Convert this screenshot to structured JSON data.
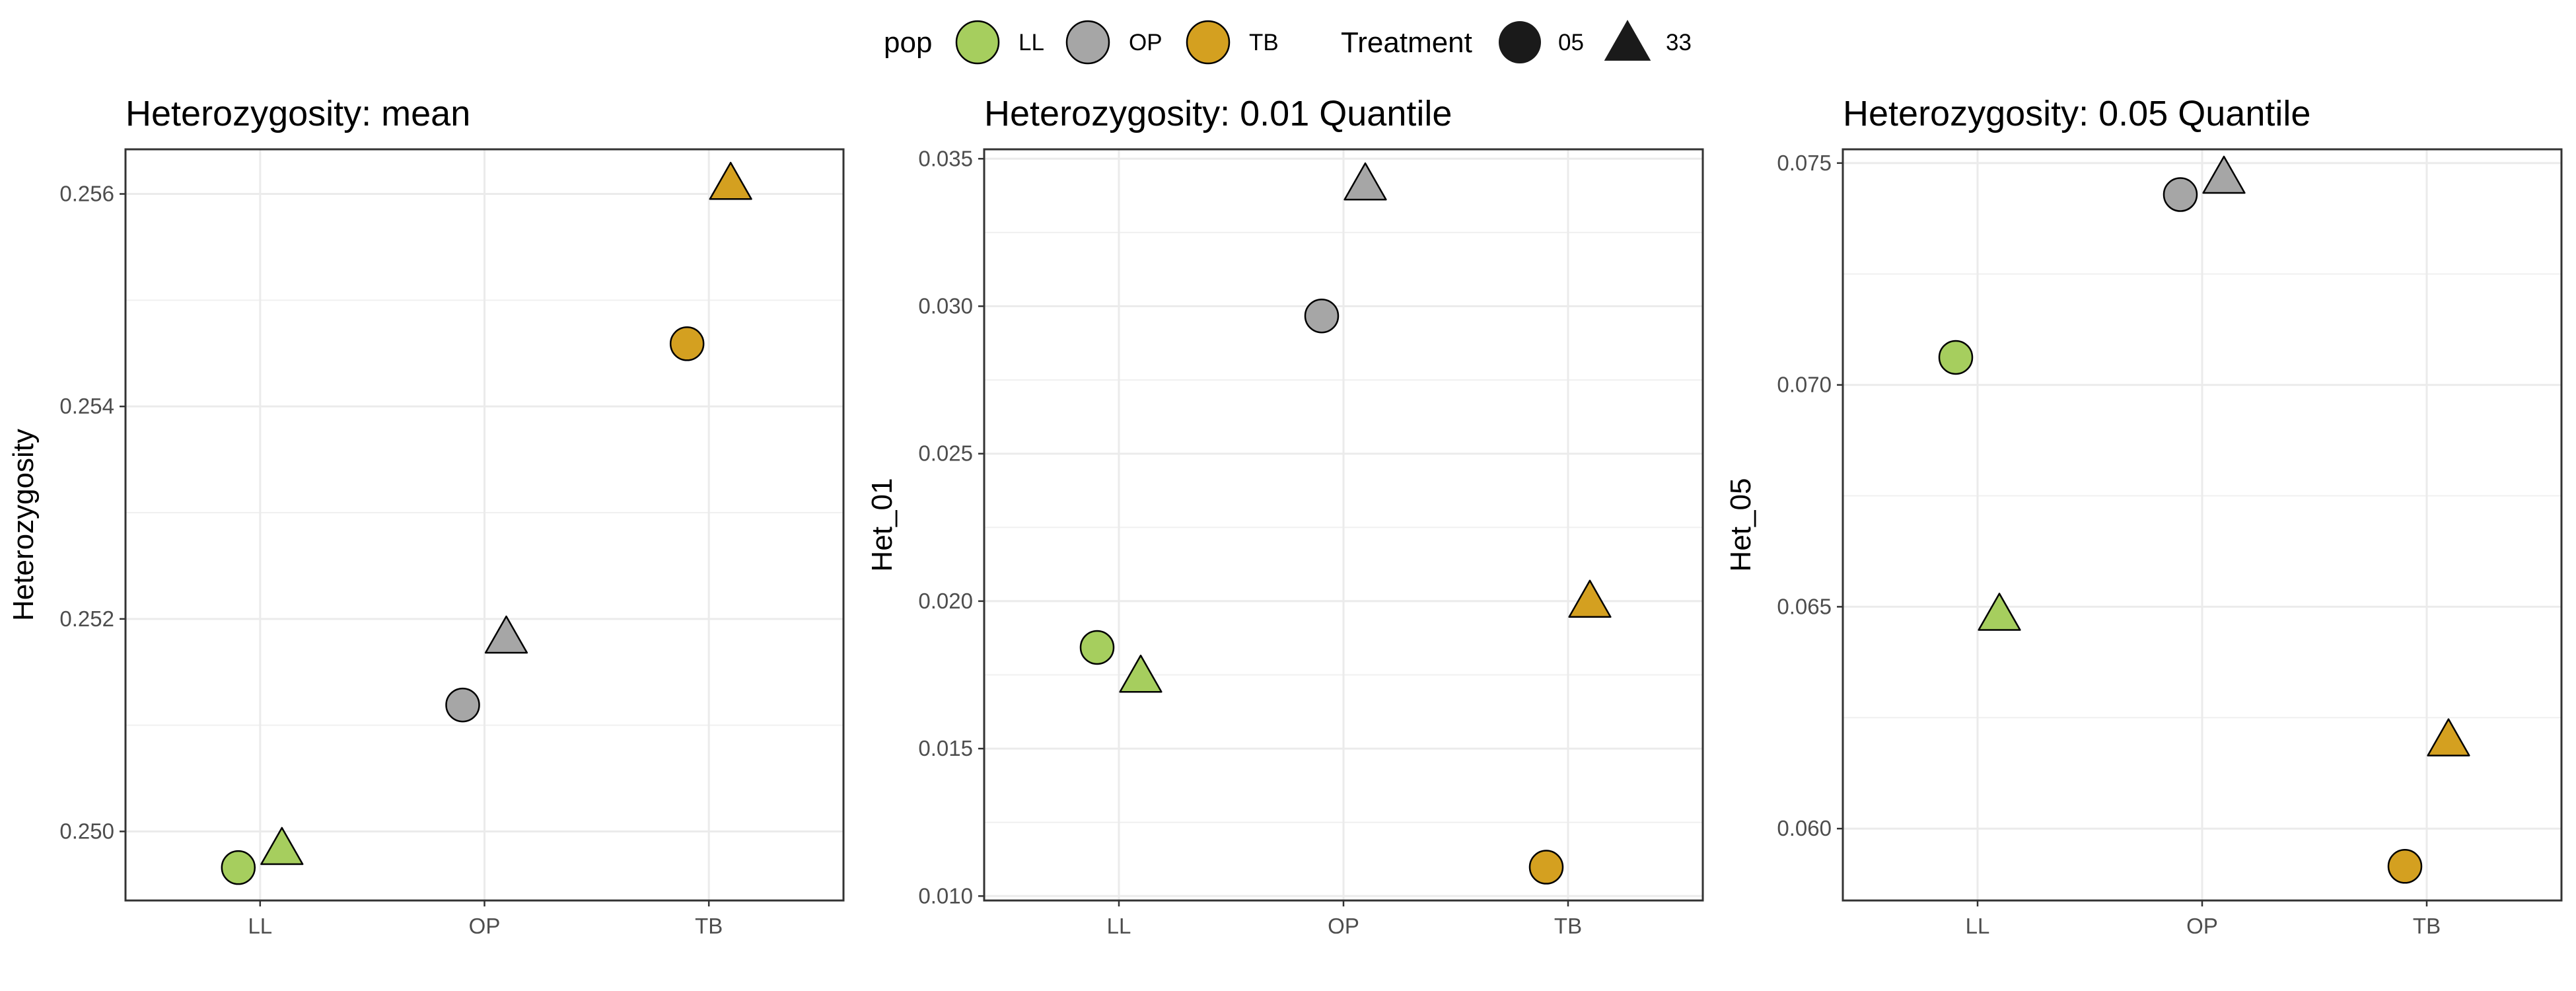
{
  "legend": {
    "pop_title": "pop",
    "treatment_title": "Treatment",
    "pop_items": [
      {
        "label": "LL",
        "color": "#A6CE5E"
      },
      {
        "label": "OP",
        "color": "#A6A6A6"
      },
      {
        "label": "TB",
        "color": "#D4A020"
      }
    ],
    "treatment_items": [
      {
        "label": "05",
        "shape": "circle"
      },
      {
        "label": "33",
        "shape": "triangle"
      }
    ]
  },
  "chart_data": [
    {
      "type": "scatter",
      "title": "Heterozygosity: mean",
      "xlabel": "",
      "ylabel": "Heterozygosity",
      "categories": [
        "LL",
        "OP",
        "TB"
      ],
      "yticks": [
        "0.250",
        "0.252",
        "0.254",
        "0.256"
      ],
      "ylim": [
        0.24935,
        0.25642
      ],
      "grid": true,
      "points": [
        {
          "pop": "LL",
          "treatment": "05",
          "value": 0.24966
        },
        {
          "pop": "LL",
          "treatment": "33",
          "value": 0.24986
        },
        {
          "pop": "OP",
          "treatment": "05",
          "value": 0.25119
        },
        {
          "pop": "OP",
          "treatment": "33",
          "value": 0.25185
        },
        {
          "pop": "TB",
          "treatment": "05",
          "value": 0.25459
        },
        {
          "pop": "TB",
          "treatment": "33",
          "value": 0.25612
        }
      ]
    },
    {
      "type": "scatter",
      "title": "Heterozygosity: 0.01 Quantile",
      "xlabel": "",
      "ylabel": "Het_01",
      "categories": [
        "LL",
        "OP",
        "TB"
      ],
      "yticks": [
        "0.010",
        "0.015",
        "0.020",
        "0.025",
        "0.030",
        "0.035"
      ],
      "ylim": [
        0.00985,
        0.03532
      ],
      "grid": true,
      "points": [
        {
          "pop": "LL",
          "treatment": "05",
          "value": 0.01843
        },
        {
          "pop": "LL",
          "treatment": "33",
          "value": 0.01753
        },
        {
          "pop": "OP",
          "treatment": "05",
          "value": 0.02967
        },
        {
          "pop": "OP",
          "treatment": "33",
          "value": 0.03422
        },
        {
          "pop": "TB",
          "treatment": "05",
          "value": 0.01098
        },
        {
          "pop": "TB",
          "treatment": "33",
          "value": 0.02007
        }
      ]
    },
    {
      "type": "scatter",
      "title": "Heterozygosity: 0.05 Quantile",
      "xlabel": "",
      "ylabel": "Het_05",
      "categories": [
        "LL",
        "OP",
        "TB"
      ],
      "yticks": [
        "0.060",
        "0.065",
        "0.070",
        "0.075"
      ],
      "ylim": [
        0.05838,
        0.07531
      ],
      "grid": true,
      "points": [
        {
          "pop": "LL",
          "treatment": "05",
          "value": 0.07062
        },
        {
          "pop": "LL",
          "treatment": "33",
          "value": 0.06488
        },
        {
          "pop": "OP",
          "treatment": "05",
          "value": 0.07429
        },
        {
          "pop": "OP",
          "treatment": "33",
          "value": 0.07473
        },
        {
          "pop": "TB",
          "treatment": "05",
          "value": 0.05915
        },
        {
          "pop": "TB",
          "treatment": "33",
          "value": 0.06205
        }
      ]
    }
  ]
}
